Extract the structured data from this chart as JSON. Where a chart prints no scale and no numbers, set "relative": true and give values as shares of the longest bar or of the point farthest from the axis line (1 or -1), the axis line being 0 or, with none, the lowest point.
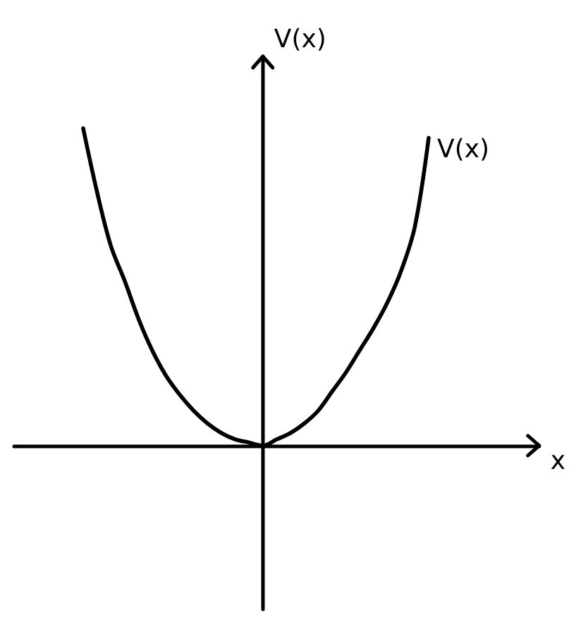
{
  "chart_data": {
    "type": "line",
    "xlabel": "x",
    "ylabel": "V(x)",
    "categories": [
      null,
      null,
      null,
      null,
      null,
      null,
      null,
      null,
      null,
      null,
      null,
      null,
      null,
      null,
      null,
      null,
      null,
      null,
      null,
      null,
      null,
      null,
      null,
      null,
      null,
      null,
      null,
      null,
      null,
      null,
      null,
      null,
      null,
      null,
      null,
      null,
      null,
      null,
      null
    ],
    "series": [
      {
        "name": "V(x)",
        "color": "#000000",
        "values": [
          null,
          null,
          null,
          null,
          null,
          1,
          0.8,
          0.63,
          0.52,
          0.4,
          0.3,
          0.22,
          0.16,
          0.11,
          0.07,
          0.04,
          0.02,
          0.01,
          0,
          0.02,
          0.04,
          0.07,
          0.11,
          0.17,
          0.23,
          0.3,
          0.37,
          0.45,
          0.55,
          0.69,
          0.97,
          null,
          null,
          null,
          null,
          null,
          null,
          null,
          null
        ]
      }
    ],
    "relative": true,
    "tick_labels": false,
    "marker": "none",
    "line_style": "solid"
  }
}
